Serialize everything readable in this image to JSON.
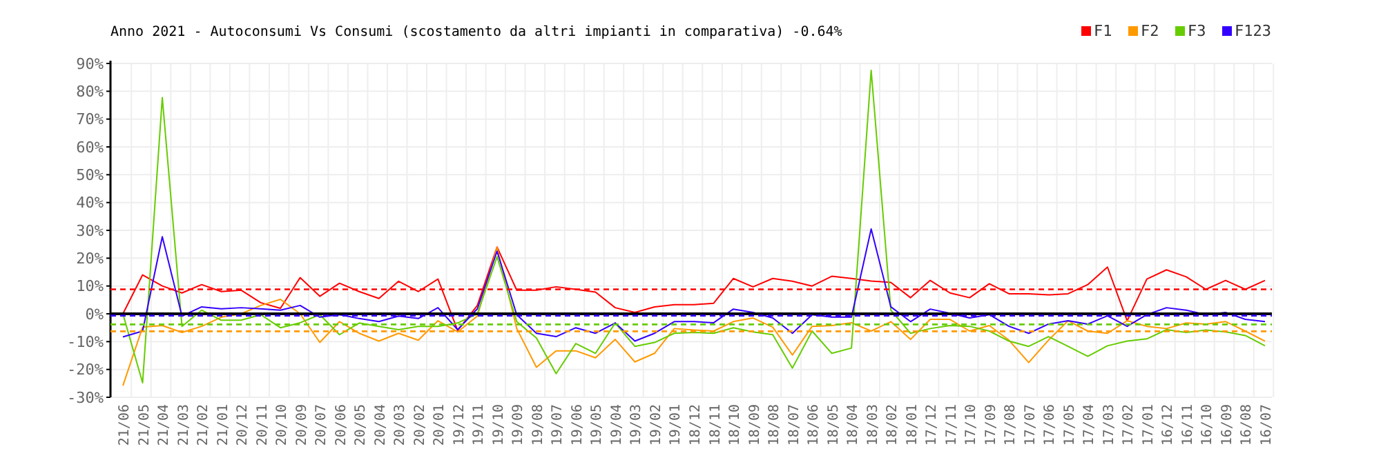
{
  "chart_data": {
    "type": "line",
    "title": "Anno 2021 - Autoconsumi Vs Consumi (scostamento da altri impianti in comparativa) -0.64%",
    "categories": [
      "21/06",
      "21/05",
      "21/04",
      "21/03",
      "21/02",
      "21/01",
      "20/12",
      "20/11",
      "20/10",
      "20/09",
      "20/07",
      "20/06",
      "20/05",
      "20/04",
      "20/03",
      "20/02",
      "20/01",
      "19/12",
      "19/11",
      "19/10",
      "19/09",
      "19/08",
      "19/07",
      "19/06",
      "19/05",
      "19/04",
      "19/03",
      "19/02",
      "19/01",
      "18/12",
      "18/11",
      "18/10",
      "18/09",
      "18/08",
      "18/07",
      "18/06",
      "18/05",
      "18/04",
      "18/03",
      "18/02",
      "18/01",
      "17/12",
      "17/11",
      "17/10",
      "17/09",
      "17/08",
      "17/07",
      "17/06",
      "17/05",
      "17/04",
      "17/03",
      "17/02",
      "17/01",
      "16/12",
      "16/11",
      "16/10",
      "16/09",
      "16/08",
      "16/07"
    ],
    "series": [
      {
        "name": "F1",
        "color": "#ff0000",
        "values": [
          0,
          14,
          10,
          7.5,
          10.5,
          8,
          8.5,
          4,
          2,
          13,
          6.3,
          11,
          8,
          5.5,
          11.7,
          8,
          12.5,
          -6,
          3,
          24,
          8.5,
          8.5,
          9.7,
          8.8,
          7.8,
          2.2,
          0.5,
          2.5,
          3.3,
          3.3,
          3.8,
          12.7,
          9.7,
          12.7,
          11.7,
          10,
          13.5,
          12.7,
          11.8,
          11.3,
          5.8,
          12,
          7.5,
          5.8,
          10.8,
          7.2,
          7.2,
          6.8,
          7.2,
          10.5,
          16.8,
          -2.5,
          12.5,
          15.8,
          13.3,
          8.8,
          12,
          8.8,
          12
        ]
      },
      {
        "name": "F2",
        "color": "#ff9900",
        "values": [
          -25.8,
          -4.8,
          -4.2,
          -6.7,
          -4.5,
          -1.2,
          0,
          3,
          5.2,
          0,
          -10.3,
          -2.8,
          -7,
          -9.8,
          -7,
          -9.5,
          -2.5,
          -6.5,
          -0.8,
          23.8,
          -5.3,
          -19.2,
          -13.3,
          -13.3,
          -15.8,
          -9.2,
          -17.3,
          -14.2,
          -5.3,
          -5.8,
          -6.2,
          -2.8,
          -1.5,
          -4.8,
          -14.8,
          -4.5,
          -4.2,
          -3.2,
          -6.2,
          -2.8,
          -9.2,
          -2,
          -2,
          -6.2,
          -4.2,
          -9.5,
          -17.5,
          -9.5,
          -2.5,
          -6.2,
          -7,
          -2.5,
          -4.5,
          -5.3,
          -3.3,
          -3.7,
          -2.8,
          -6.2,
          -9.8
        ]
      },
      {
        "name": "F3",
        "color": "#66cc00",
        "values": [
          0,
          -24.8,
          77.7,
          -4.5,
          1.3,
          -2.3,
          -2.3,
          -0.3,
          -5,
          -3.2,
          -0.3,
          -7.5,
          -3.3,
          -4.5,
          -5.7,
          -4.5,
          -4.5,
          -3.3,
          0,
          20.5,
          -2.8,
          -8.7,
          -21.5,
          -10.7,
          -14.2,
          -3.3,
          -11.7,
          -10.3,
          -7,
          -6.7,
          -7,
          -5,
          -6.5,
          -7.5,
          -19.5,
          -6.2,
          -14.2,
          -12.3,
          87.5,
          1.3,
          -7,
          -5.3,
          -4.2,
          -4.5,
          -6.2,
          -9.8,
          -11.7,
          -8.2,
          -11.7,
          -15.3,
          -11.5,
          -9.8,
          -9,
          -5.7,
          -6.7,
          -5.8,
          -6.5,
          -7.8,
          -11.5
        ]
      },
      {
        "name": "F123",
        "color": "#3300ff",
        "values": [
          -8.3,
          -6.2,
          27.7,
          -0.8,
          2.5,
          1.8,
          2.2,
          1.8,
          1.3,
          3,
          -1.2,
          -0.3,
          -1.7,
          -2.8,
          -0.8,
          -1.7,
          2.2,
          -5.7,
          1.8,
          22.5,
          -0.3,
          -7,
          -8.2,
          -5,
          -7,
          -3.3,
          -9.8,
          -7,
          -2.8,
          -2.8,
          -3.2,
          1.7,
          0.5,
          -1.5,
          -7,
          -0.3,
          -1.2,
          -1.2,
          30.5,
          2.5,
          -2.8,
          1.7,
          0.2,
          -1.5,
          -0.3,
          -4.5,
          -7,
          -3.7,
          -2.5,
          -3.7,
          -0.7,
          -4.5,
          -0.3,
          2.2,
          1.3,
          -0.3,
          0.5,
          -2,
          -2.8
        ]
      }
    ],
    "ylim": [
      -30,
      90
    ],
    "yticks": [
      {
        "value": -30,
        "label": "-30%"
      },
      {
        "value": -20,
        "label": "-20%"
      },
      {
        "value": -10,
        "label": "-10%"
      },
      {
        "value": 0,
        "label": "0%"
      },
      {
        "value": 10,
        "label": "10%"
      },
      {
        "value": 20,
        "label": "20%"
      },
      {
        "value": 30,
        "label": "30%"
      },
      {
        "value": 40,
        "label": "40%"
      },
      {
        "value": 50,
        "label": "50%"
      },
      {
        "value": 60,
        "label": "60%"
      },
      {
        "value": 70,
        "label": "70%"
      },
      {
        "value": 80,
        "label": "80%"
      },
      {
        "value": 90,
        "label": "90%"
      }
    ],
    "ref_lines": [
      {
        "axis": "y",
        "value": 0,
        "color": "#000000",
        "line_style": "solid"
      },
      {
        "axis": "y",
        "value": 8.8,
        "color": "#ff0000",
        "line_style": "dashed"
      },
      {
        "axis": "y",
        "value": -3.8,
        "color": "#66cc00",
        "line_style": "dashed"
      },
      {
        "axis": "y",
        "value": -6.3,
        "color": "#ff9900",
        "line_style": "dashed"
      },
      {
        "axis": "y",
        "value": -0.64,
        "color": "#3300ff",
        "line_style": "dashed"
      }
    ],
    "grid": true,
    "legend": "top right",
    "marker": "none",
    "line_style": "solid"
  }
}
